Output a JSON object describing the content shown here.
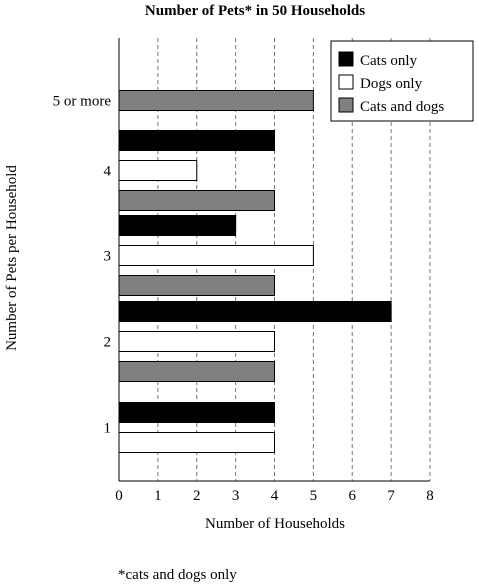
{
  "chart_data": {
    "type": "bar",
    "orientation": "horizontal",
    "title": "Number of Pets* in 50 Households",
    "xlabel": "Number of Households",
    "ylabel": "Number of Pets per Household",
    "footnote": "*cats and dogs only",
    "xlim": [
      0,
      8
    ],
    "x_ticks": [
      "0",
      "1",
      "2",
      "3",
      "4",
      "5",
      "6",
      "7",
      "8"
    ],
    "grid": "vertical dashed",
    "legend_position": "top-right",
    "categories": [
      "1",
      "2",
      "3",
      "4",
      "5 or more"
    ],
    "series": [
      {
        "name": "Cats only",
        "color": "#000000",
        "values": [
          4,
          7,
          3,
          4,
          null
        ]
      },
      {
        "name": "Dogs only",
        "color": "#ffffff",
        "values": [
          4,
          4,
          5,
          2,
          null
        ]
      },
      {
        "name": "Cats and dogs",
        "color": "#808080",
        "values": [
          null,
          4,
          4,
          4,
          5
        ]
      }
    ]
  }
}
